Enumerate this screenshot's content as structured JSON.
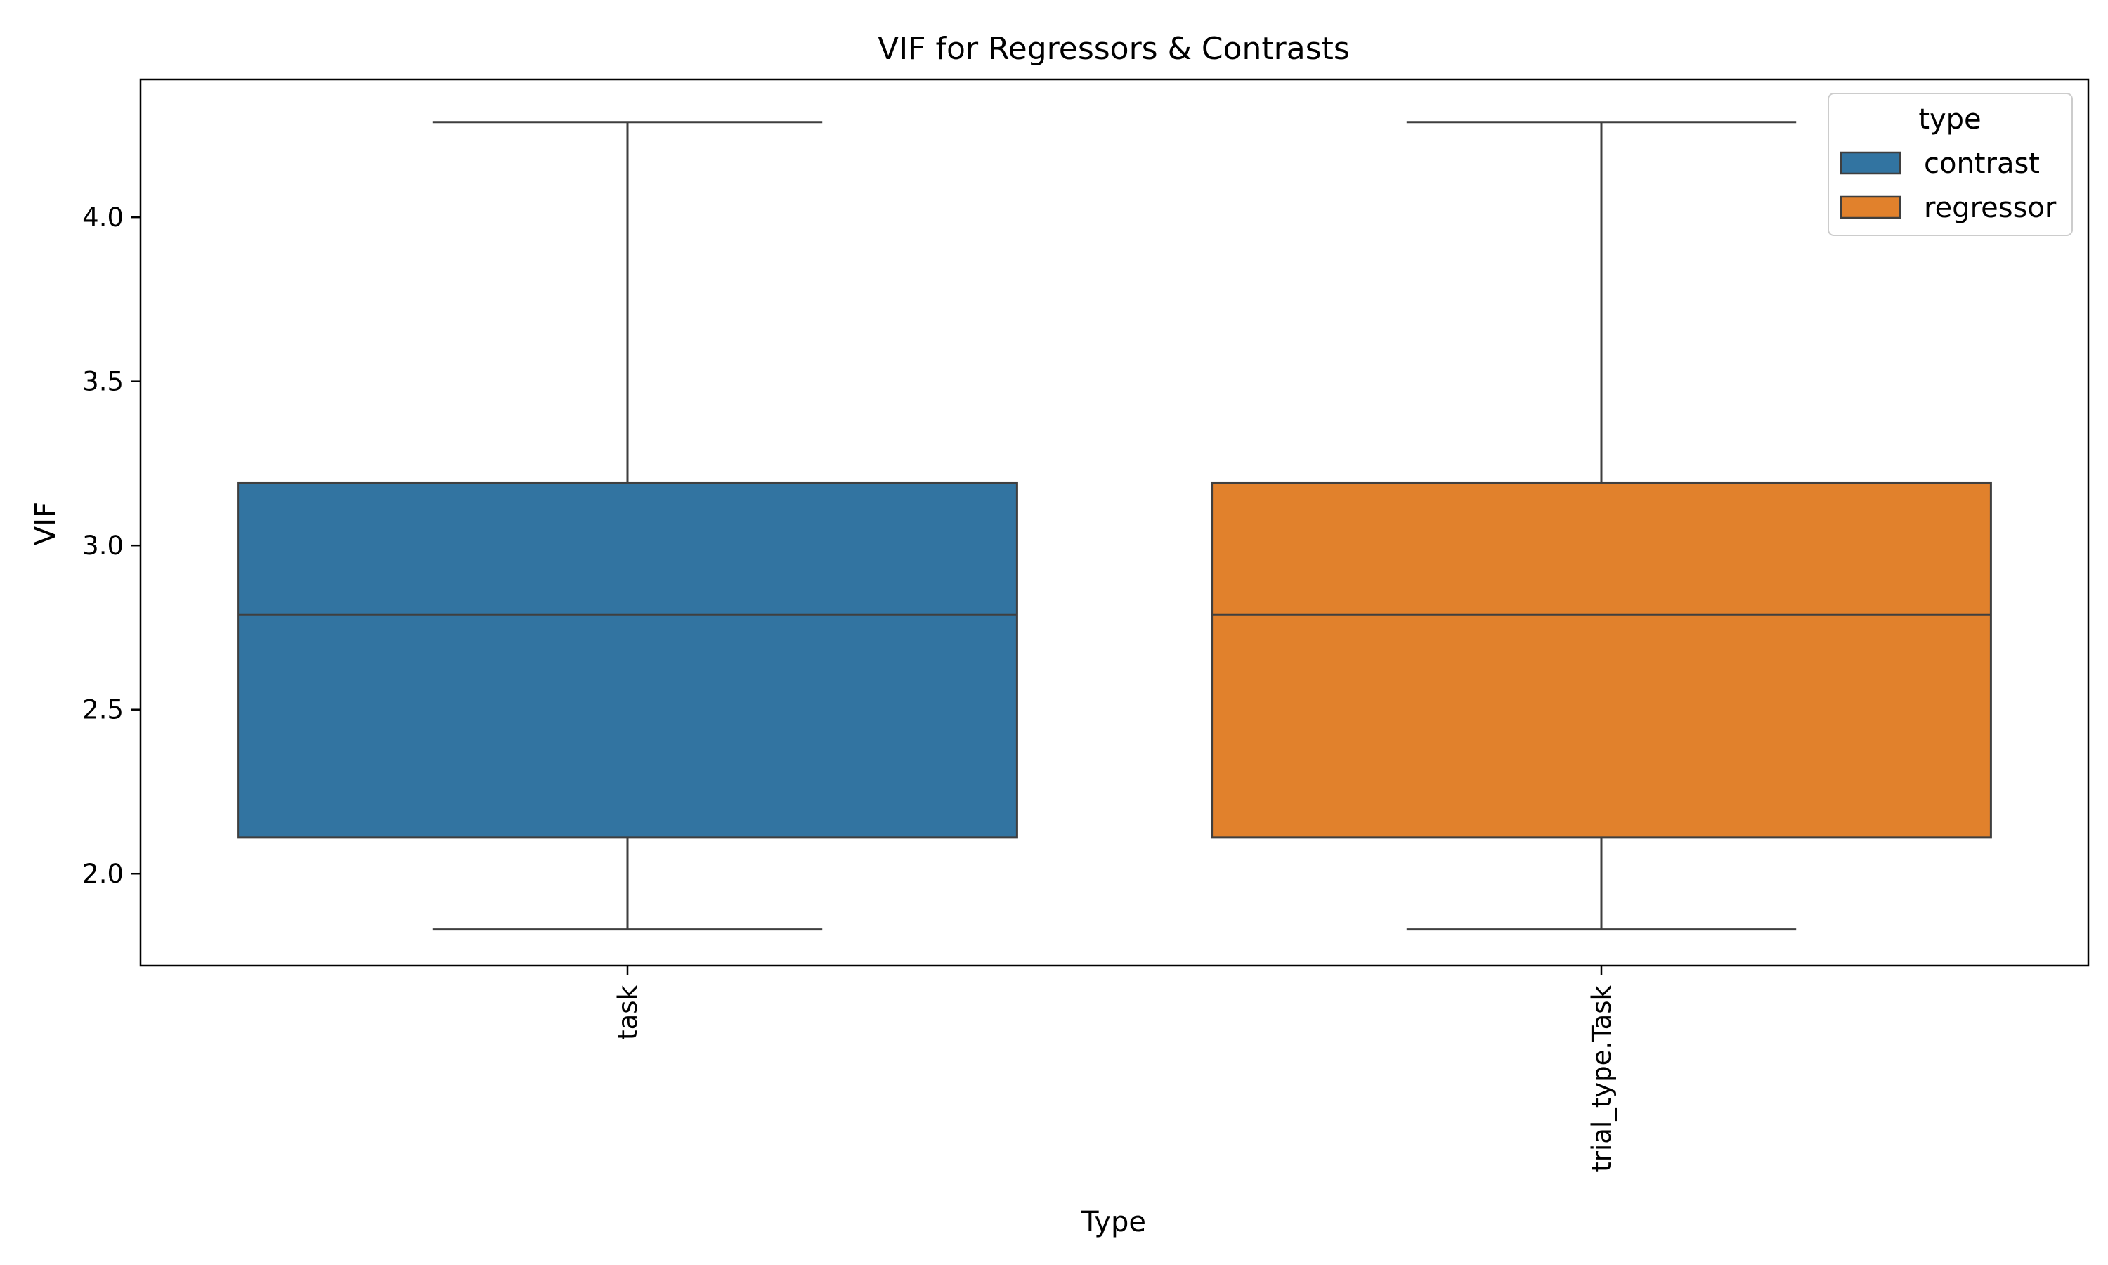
{
  "chart_data": {
    "type": "box",
    "title": "VIF for Regressors & Contrasts",
    "xlabel": "Type",
    "ylabel": "VIF",
    "ylim": [
      1.72,
      4.42
    ],
    "yticks": [
      2.0,
      2.5,
      3.0,
      3.5,
      4.0
    ],
    "ytick_labels": [
      "2.0",
      "2.5",
      "3.0",
      "3.5",
      "4.0"
    ],
    "categories": [
      "task",
      "trial_type.Task"
    ],
    "boxes": [
      {
        "category": "task",
        "hue": "contrast",
        "min": 1.83,
        "q1": 2.11,
        "median": 2.79,
        "q3": 3.19,
        "max": 4.29,
        "color": "#3274a1"
      },
      {
        "category": "trial_type.Task",
        "hue": "regressor",
        "min": 1.83,
        "q1": 2.11,
        "median": 2.79,
        "q3": 3.19,
        "max": 4.29,
        "color": "#e1812c"
      }
    ],
    "legend": {
      "title": "type",
      "placement": "upper right",
      "entries": [
        {
          "label": "contrast",
          "color": "#3274a1"
        },
        {
          "label": "regressor",
          "color": "#e1812c"
        }
      ]
    },
    "grid": false
  }
}
